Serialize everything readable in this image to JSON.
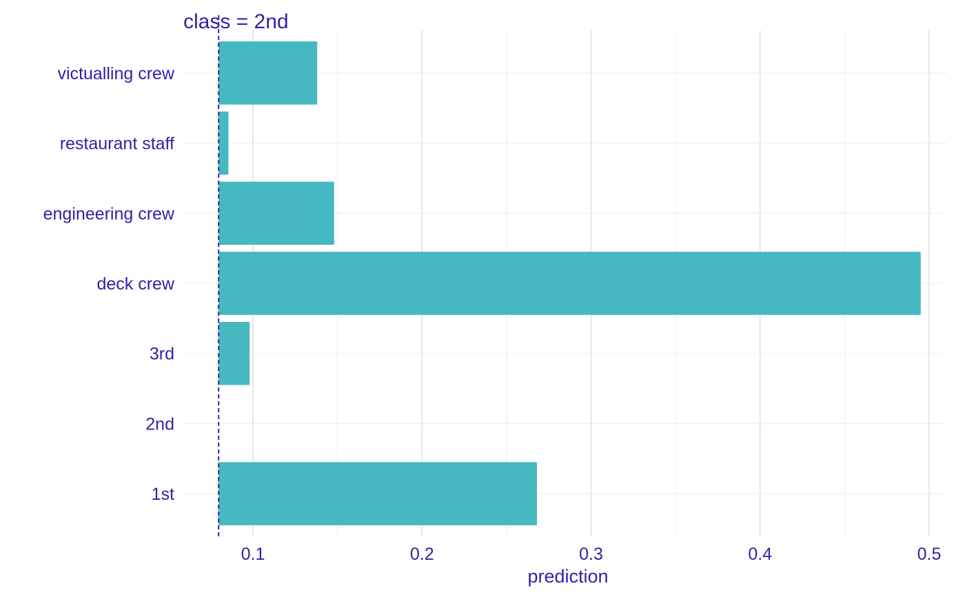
{
  "chart_data": {
    "type": "bar",
    "orientation": "horizontal",
    "title": "class = 2nd",
    "xlabel": "prediction",
    "ylabel": "",
    "baseline": 0.0797,
    "baseline_line_style": "dashed",
    "xlim": [
      0.06,
      0.515
    ],
    "x_ticks": [
      0.1,
      0.2,
      0.3,
      0.4,
      0.5
    ],
    "x_tick_labels": [
      "0.1",
      "0.2",
      "0.3",
      "0.4",
      "0.5"
    ],
    "grid": true,
    "legend": "none",
    "categories": [
      "victualling crew",
      "restaurant staff",
      "engineering crew",
      "deck crew",
      "3rd",
      "2nd",
      "1st"
    ],
    "values": [
      0.138,
      0.0855,
      0.148,
      0.495,
      0.098,
      0.0797,
      0.268
    ],
    "colors": {
      "bar": "#46b8c2",
      "text": "#371ea3",
      "baseline": "#371ea3",
      "grid_major": "#e6e6ea",
      "grid_minor": "#f0f0f2"
    }
  }
}
